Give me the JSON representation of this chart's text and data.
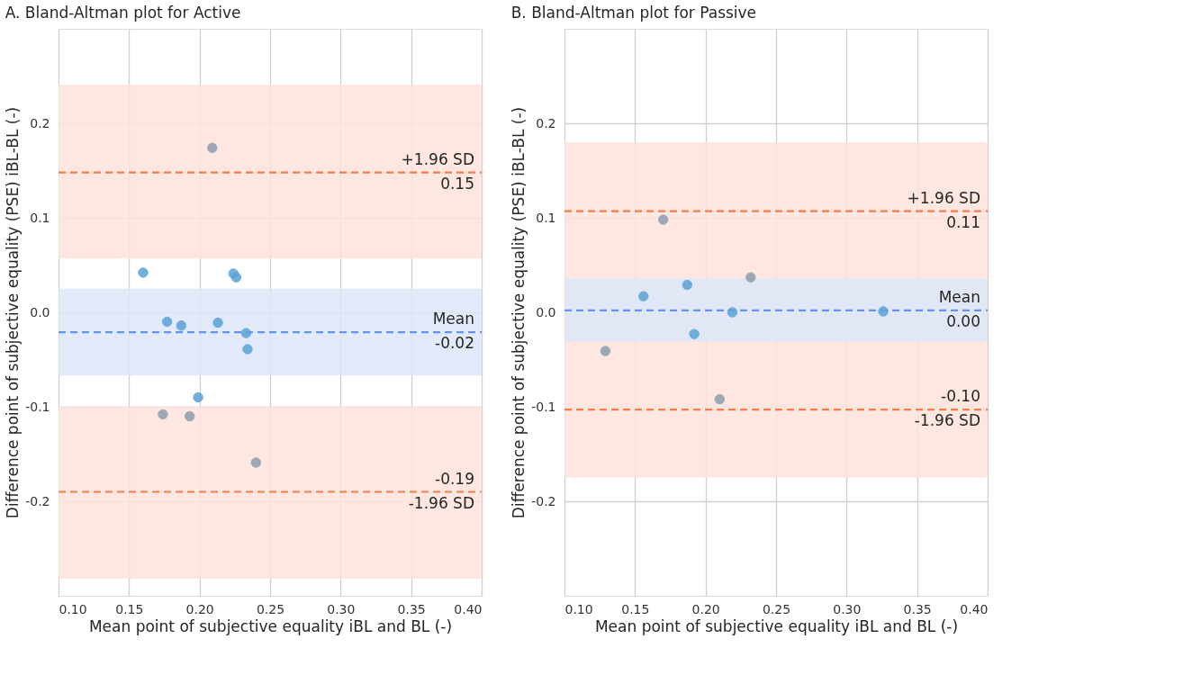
{
  "chart_data": [
    {
      "type": "scatter",
      "title": "A. Bland-Altman plot for Active",
      "xlabel": "Mean point of subjective equality iBL and BL (-)",
      "ylabel": "Difference point of subjective equality (PSE) iBL-BL (-)",
      "marker": "circle",
      "grid": true,
      "xlim": [
        0.1,
        0.4
      ],
      "ylim": [
        -0.3,
        0.3
      ],
      "xticks": [
        {
          "value": 0.1,
          "label": "0.10"
        },
        {
          "value": 0.15,
          "label": "0.15"
        },
        {
          "value": 0.2,
          "label": "0.20"
        },
        {
          "value": 0.25,
          "label": "0.25"
        },
        {
          "value": 0.3,
          "label": "0.30"
        },
        {
          "value": 0.35,
          "label": "0.35"
        },
        {
          "value": 0.4,
          "label": "0.40"
        }
      ],
      "yticks": [
        {
          "value": -0.2,
          "label": "-0.2"
        },
        {
          "value": -0.1,
          "label": "-0.1"
        },
        {
          "value": 0,
          "label": "0.0"
        },
        {
          "value": 0.1,
          "label": "0.1"
        },
        {
          "value": 0.2,
          "label": "0.2"
        }
      ],
      "series": [
        {
          "color": "#5aa2d8",
          "x": [
            0.16,
            0.177,
            0.187,
            0.213,
            0.224,
            0.226,
            0.233,
            0.234,
            0.199
          ],
          "values": [
            0.042,
            -0.01,
            -0.014,
            -0.011,
            0.041,
            0.037,
            -0.022,
            -0.039,
            -0.09
          ]
        },
        {
          "color": "#8c9eae",
          "x": [
            0.209,
            0.174,
            0.193,
            0.24
          ],
          "values": [
            0.174,
            -0.108,
            -0.11,
            -0.159
          ]
        }
      ],
      "bands": [
        {
          "axis": "y",
          "from": 0.057,
          "to": 0.241,
          "color": "#fde3da"
        },
        {
          "axis": "y",
          "from": -0.282,
          "to": -0.1,
          "color": "#fde3da"
        },
        {
          "axis": "y",
          "from": -0.067,
          "to": 0.025,
          "color": "#dde6f8"
        }
      ],
      "ref_lines": [
        {
          "axis": "y",
          "value": 0.148,
          "label": "+1.96 SD",
          "color": "#f47c48",
          "line_style": "dashed"
        },
        {
          "axis": "y",
          "value": -0.021,
          "label": "Mean",
          "color": "#6495ed",
          "line_style": "dashed"
        },
        {
          "axis": "y",
          "value": -0.19,
          "label": "-0.19",
          "color": "#f47c48",
          "line_style": "dashed"
        }
      ],
      "annotations": [
        {
          "text": "0.15",
          "y": 0.148
        },
        {
          "text": "-0.02",
          "y": -0.021
        },
        {
          "text": "-1.96 SD",
          "y": -0.19
        }
      ]
    },
    {
      "type": "scatter",
      "title": "B. Bland-Altman plot for Passive",
      "xlabel": "Mean point of subjective equality iBL and BL (-)",
      "ylabel": "Difference point of subjective equality (PSE) iBL-BL (-)",
      "marker": "circle",
      "grid": true,
      "xlim": [
        0.1,
        0.4
      ],
      "ylim": [
        -0.3,
        0.3
      ],
      "xticks": [
        {
          "value": 0.1,
          "label": "0.10"
        },
        {
          "value": 0.15,
          "label": "0.15"
        },
        {
          "value": 0.2,
          "label": "0.20"
        },
        {
          "value": 0.25,
          "label": "0.25"
        },
        {
          "value": 0.3,
          "label": "0.30"
        },
        {
          "value": 0.35,
          "label": "0.35"
        },
        {
          "value": 0.4,
          "label": "0.40"
        }
      ],
      "yticks": [
        {
          "value": -0.2,
          "label": "-0.2"
        },
        {
          "value": -0.1,
          "label": "-0.1"
        },
        {
          "value": 0,
          "label": "0.0"
        },
        {
          "value": 0.1,
          "label": "0.1"
        },
        {
          "value": 0.2,
          "label": "0.2"
        }
      ],
      "series": [
        {
          "color": "#5aa2d8",
          "x": [
            0.156,
            0.187,
            0.192,
            0.219,
            0.326
          ],
          "values": [
            0.017,
            0.029,
            -0.023,
            0.0,
            0.001
          ]
        },
        {
          "color": "#8c9eae",
          "x": [
            0.129,
            0.17,
            0.21,
            0.232
          ],
          "values": [
            -0.041,
            0.098,
            -0.092,
            0.037
          ]
        }
      ],
      "bands": [
        {
          "axis": "y",
          "from": -0.175,
          "to": 0.18,
          "color": "#fde3da"
        },
        {
          "axis": "y",
          "from": -0.031,
          "to": 0.036,
          "color": "#dde6f8"
        }
      ],
      "ref_lines": [
        {
          "axis": "y",
          "value": 0.107,
          "label": "+1.96 SD",
          "color": "#f47c48",
          "line_style": "dashed"
        },
        {
          "axis": "y",
          "value": 0.002,
          "label": "Mean",
          "color": "#6495ed",
          "line_style": "dashed"
        },
        {
          "axis": "y",
          "value": -0.103,
          "label": "-0.10",
          "color": "#f47c48",
          "line_style": "dashed"
        }
      ],
      "annotations": [
        {
          "text": "0.11",
          "y": 0.107
        },
        {
          "text": "0.00",
          "y": 0.002
        },
        {
          "text": "-1.96 SD",
          "y": -0.103
        }
      ]
    }
  ]
}
